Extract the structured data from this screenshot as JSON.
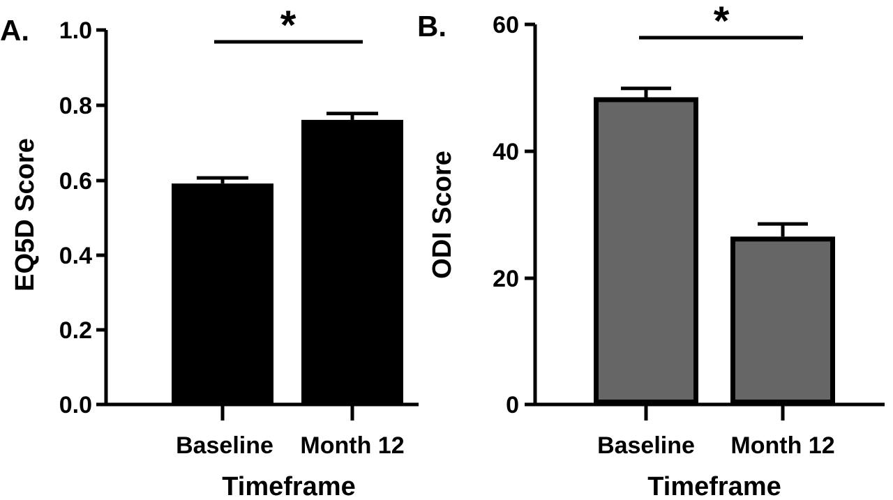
{
  "chart_data": [
    {
      "panel_label": "A.",
      "type": "bar",
      "categories": [
        "Baseline",
        "Month 12"
      ],
      "values": [
        0.59,
        0.76
      ],
      "error": [
        0.015,
        0.017
      ],
      "xlabel": "Timeframe",
      "ylabel": "EQ5D Score",
      "ylim": [
        0,
        1.0
      ],
      "yticks": [
        "0.0",
        "0.2",
        "0.4",
        "0.6",
        "0.8",
        "1.0"
      ],
      "significance": "*",
      "bar_fill": "#000000",
      "bar_stroke": "#000000"
    },
    {
      "panel_label": "B.",
      "type": "bar",
      "categories": [
        "Baseline",
        "Month 12"
      ],
      "values": [
        48.5,
        26.5
      ],
      "error": [
        1.4,
        2.0
      ],
      "xlabel": "Timeframe",
      "ylabel": "ODI Score",
      "ylim": [
        0,
        60
      ],
      "yticks": [
        "0",
        "20",
        "40",
        "60"
      ],
      "significance": "*",
      "bar_fill": "#666666",
      "bar_stroke": "#000000"
    }
  ]
}
